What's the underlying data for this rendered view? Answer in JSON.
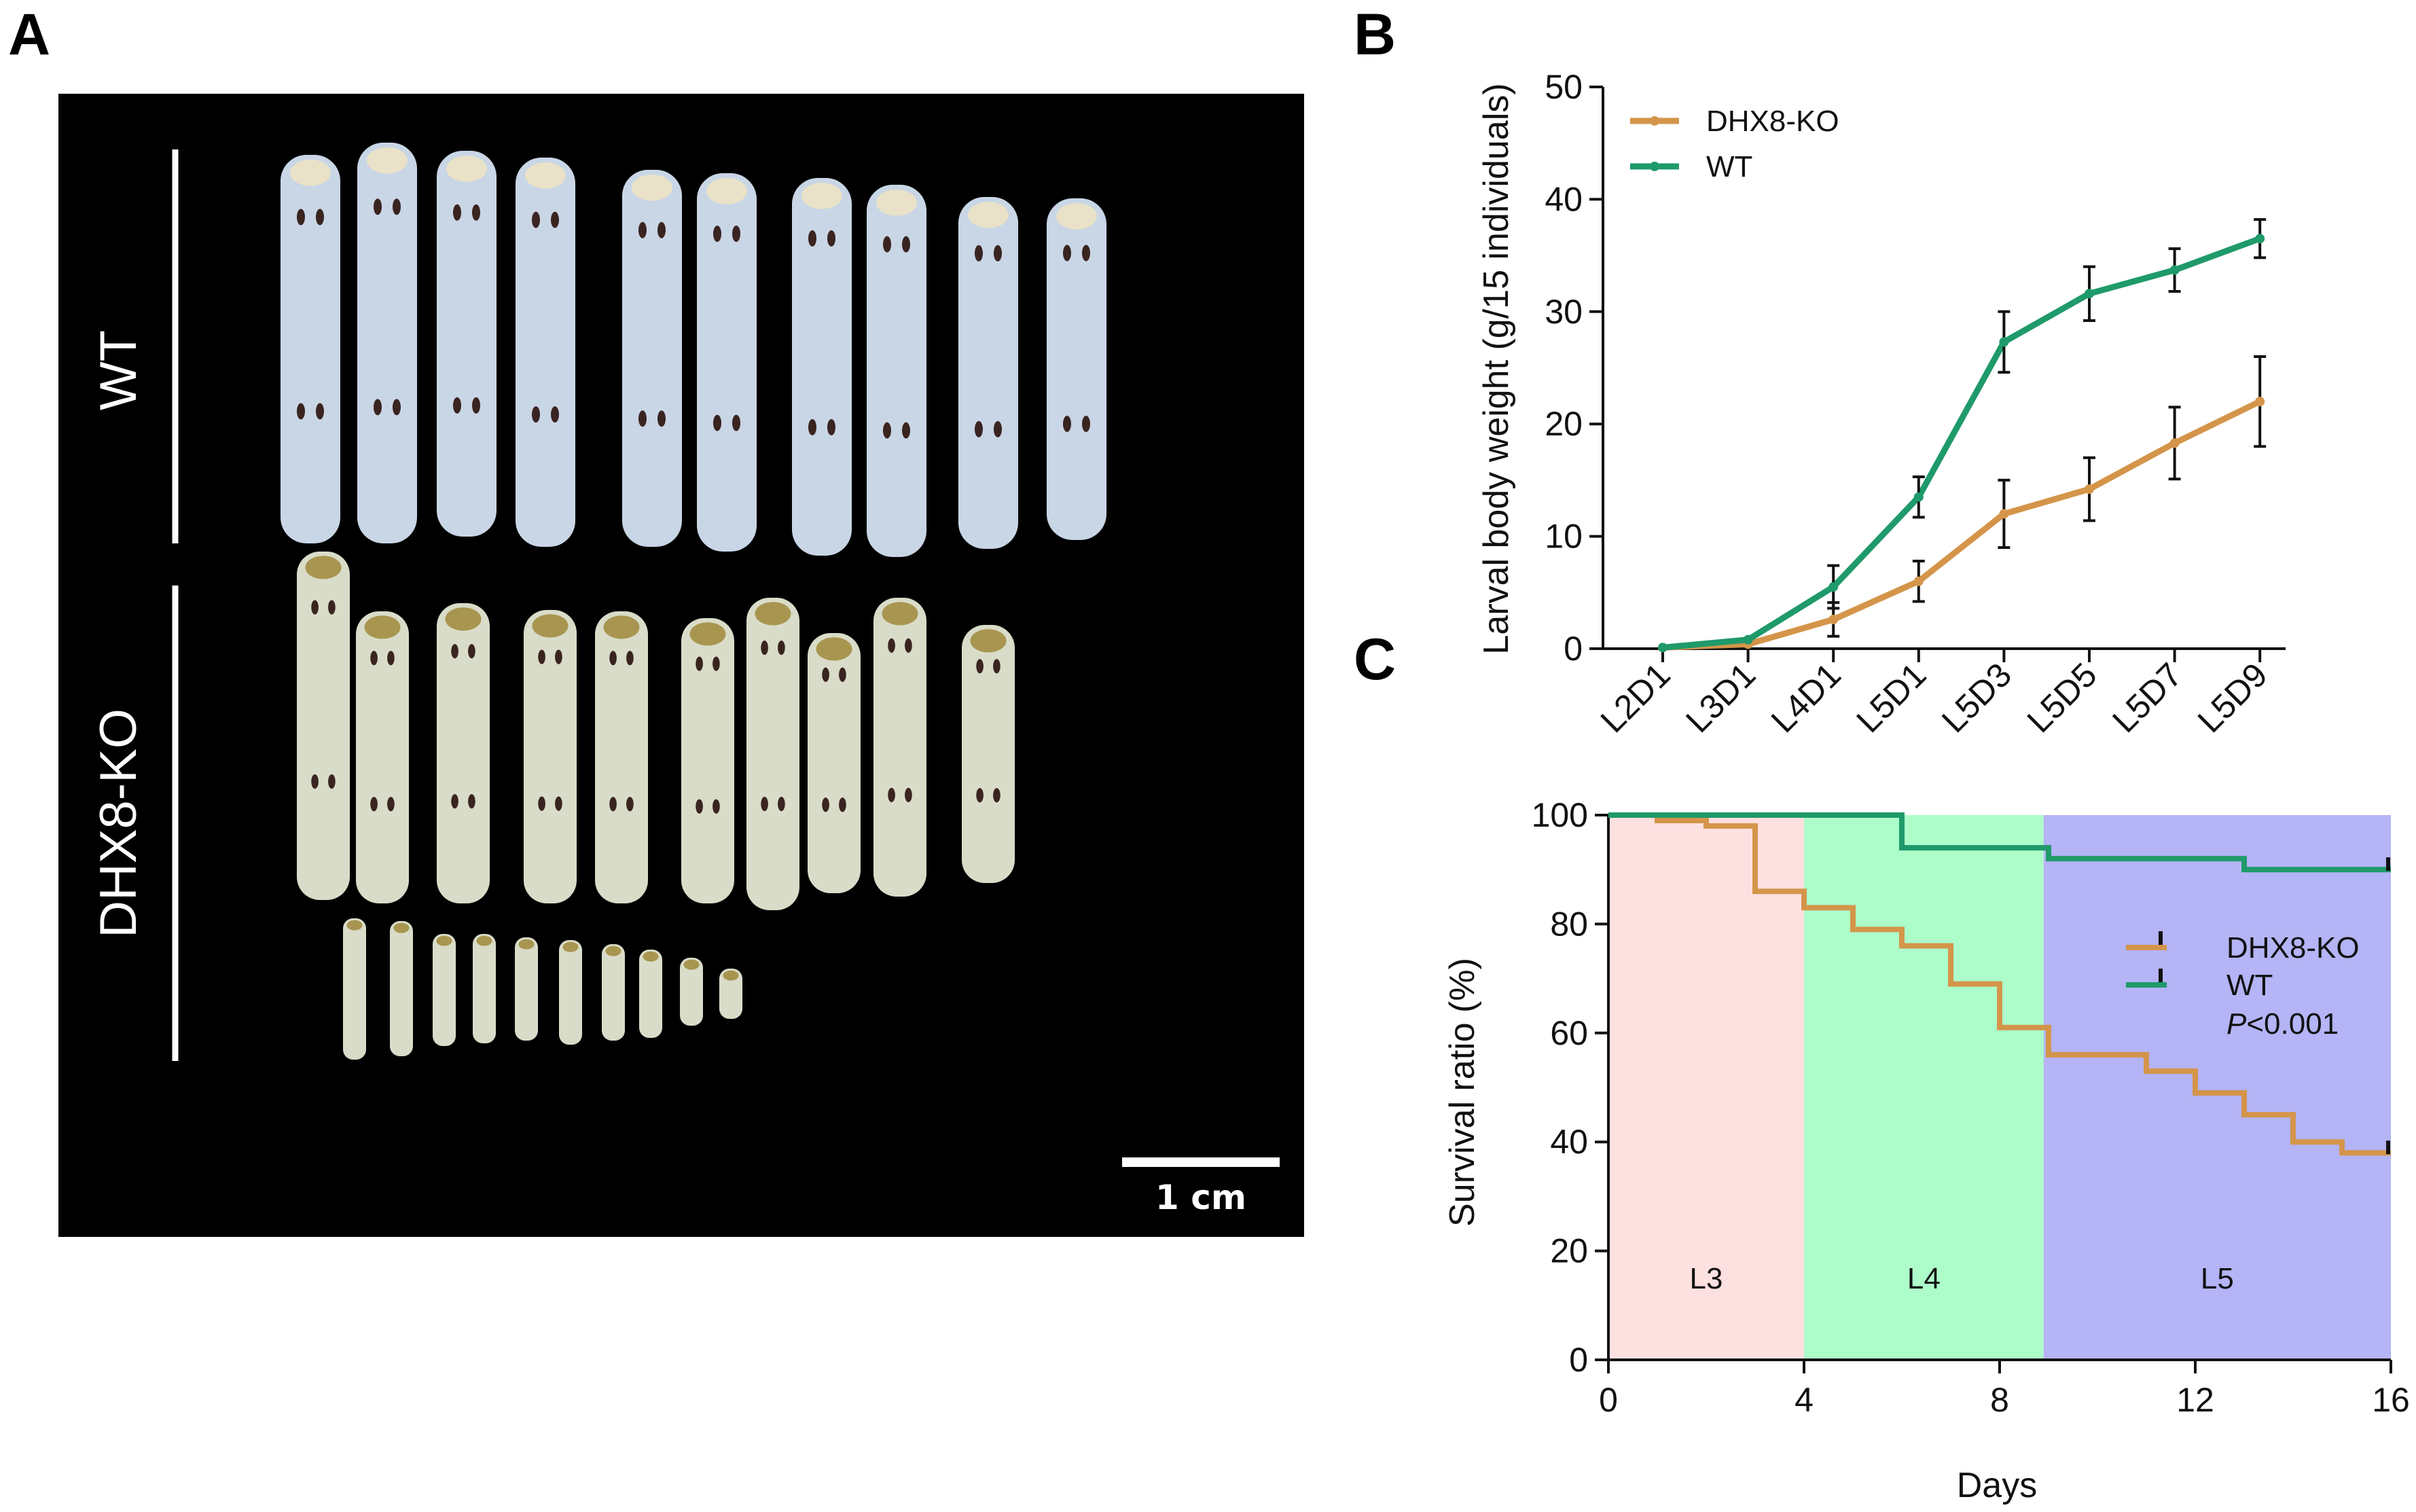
{
  "panels": {
    "a": {
      "letter": "A",
      "labels": {
        "wt": "WT",
        "ko": "DHX8-KO"
      },
      "scale_bar": "1 cm",
      "colors": {
        "background": "#000000",
        "larva_wt": "#c9d6e6",
        "larva_ko": "#d9dcc8"
      }
    },
    "b": {
      "letter": "B"
    },
    "c": {
      "letter": "C",
      "p_value_italic": "P",
      "p_value_rest": "<0.001"
    }
  },
  "chart_data": [
    {
      "id": "B",
      "type": "line",
      "title": "",
      "xlabel": "",
      "ylabel": "Larval body weight (g/15 individuals)",
      "categories": [
        "L2D1",
        "L3D1",
        "L4D1",
        "L5D1",
        "L5D3",
        "L5D5",
        "L5D7",
        "L5D9"
      ],
      "ylim": [
        0,
        50
      ],
      "yticks": [
        "0",
        "10",
        "20",
        "30",
        "40",
        "50"
      ],
      "legend_position": "top-left",
      "series": [
        {
          "name": "DHX8-KO",
          "color": "#d4954a",
          "values": [
            0.1,
            0.4,
            2.6,
            6.0,
            12.0,
            14.2,
            18.3,
            22.0
          ],
          "errors": [
            0.1,
            0.2,
            1.5,
            1.8,
            3.0,
            2.8,
            3.2,
            4.0
          ]
        },
        {
          "name": "WT",
          "color": "#1f9a6a",
          "values": [
            0.1,
            0.8,
            5.5,
            13.5,
            27.3,
            31.6,
            33.7,
            36.5
          ],
          "errors": [
            0.1,
            0.3,
            1.9,
            1.8,
            2.7,
            2.4,
            1.9,
            1.7
          ]
        }
      ]
    },
    {
      "id": "C",
      "type": "step",
      "title": "",
      "xlabel": "Days",
      "ylabel": "Survival ratio (%)",
      "xlim": [
        0,
        16
      ],
      "ylim": [
        0,
        100
      ],
      "xticks": [
        "0",
        "4",
        "8",
        "12",
        "16"
      ],
      "yticks": [
        "0",
        "20",
        "40",
        "60",
        "80",
        "100"
      ],
      "legend_position": "right",
      "stages": [
        {
          "label": "L3",
          "from": 0,
          "to": 4,
          "color": "#fde0e0"
        },
        {
          "label": "L4",
          "from": 4,
          "to": 8.9,
          "color": "#adfdca"
        },
        {
          "label": "L5",
          "from": 8.9,
          "to": 16,
          "color": "#b4b4f6"
        }
      ],
      "series": [
        {
          "name": "DHX8-KO",
          "color": "#d4954a",
          "steps": [
            [
              0,
              100
            ],
            [
              1,
              99
            ],
            [
              2,
              98
            ],
            [
              3,
              86
            ],
            [
              4,
              83
            ],
            [
              5,
              79
            ],
            [
              6,
              76
            ],
            [
              7,
              69
            ],
            [
              8,
              61
            ],
            [
              9,
              56
            ],
            [
              11,
              53
            ],
            [
              12,
              49
            ],
            [
              13,
              45
            ],
            [
              14,
              40
            ],
            [
              15,
              38
            ],
            [
              16,
              38
            ]
          ]
        },
        {
          "name": "WT",
          "color": "#1f9a6a",
          "steps": [
            [
              0,
              100
            ],
            [
              6,
              94
            ],
            [
              9,
              92
            ],
            [
              13,
              90
            ],
            [
              16,
              90
            ]
          ]
        }
      ]
    }
  ]
}
